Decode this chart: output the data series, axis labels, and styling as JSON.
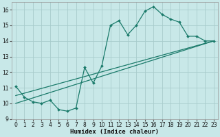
{
  "xlabel": "Humidex (Indice chaleur)",
  "bg_color": "#c8e8e8",
  "grid_color": "#a8cccc",
  "line_color": "#1a7a6a",
  "xlim": [
    -0.5,
    23.5
  ],
  "ylim": [
    9,
    16.5
  ],
  "xticks": [
    0,
    1,
    2,
    3,
    4,
    5,
    6,
    7,
    8,
    9,
    10,
    11,
    12,
    13,
    14,
    15,
    16,
    17,
    18,
    19,
    20,
    21,
    22,
    23
  ],
  "yticks": [
    9,
    10,
    11,
    12,
    13,
    14,
    15,
    16
  ],
  "series": [
    {
      "x": [
        0,
        1,
        2,
        3,
        4,
        5,
        6,
        7,
        8,
        9,
        10,
        11,
        12,
        13,
        14,
        15,
        16,
        17,
        18,
        19,
        20,
        21,
        22,
        23
      ],
      "y": [
        11.1,
        10.4,
        10.1,
        10.0,
        10.2,
        9.6,
        9.5,
        9.7,
        12.3,
        11.3,
        12.4,
        15.0,
        15.3,
        14.4,
        15.0,
        15.9,
        16.2,
        15.7,
        15.4,
        15.2,
        14.3,
        14.3,
        14.0,
        14.0
      ],
      "has_markers": true
    },
    {
      "x": [
        0,
        23
      ],
      "y": [
        10.5,
        14.0
      ],
      "has_markers": false
    },
    {
      "x": [
        0,
        23
      ],
      "y": [
        10.0,
        14.0
      ],
      "has_markers": false
    }
  ]
}
